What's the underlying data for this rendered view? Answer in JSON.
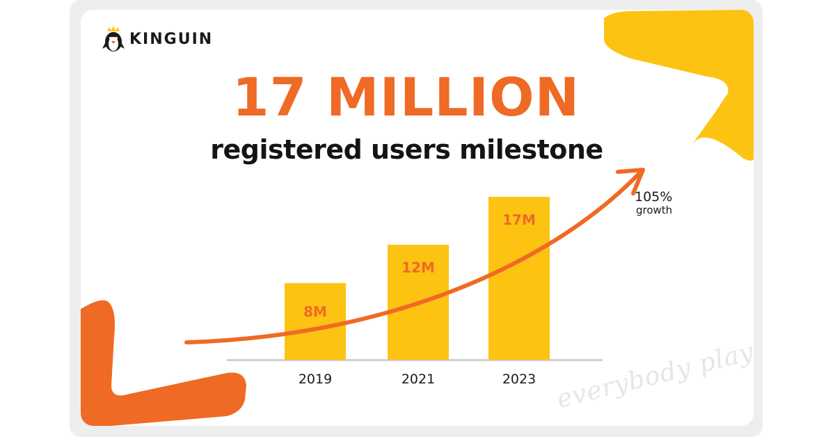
{
  "brand": {
    "name": "KINGUIN"
  },
  "headline": "17 MILLION",
  "subheadline": "registered users milestone",
  "growth": {
    "value": "105%",
    "label": "growth"
  },
  "tagline": "everybody plays!",
  "colors": {
    "orange": "#ef6a24",
    "yellow": "#fdc312",
    "dark": "#1a1a1a",
    "baseline": "#cfcfcf",
    "tagline": "#e6e6e6"
  },
  "chart_data": {
    "type": "bar",
    "categories": [
      "2019",
      "2021",
      "2023"
    ],
    "values": [
      8,
      12,
      17
    ],
    "data_labels": [
      "8M",
      "12M",
      "17M"
    ],
    "ylim": [
      0,
      17.5
    ],
    "grid": false,
    "trend_arrow": true
  }
}
